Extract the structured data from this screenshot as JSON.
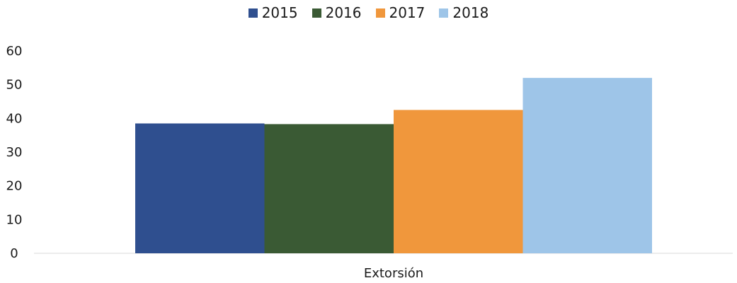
{
  "chart_data": {
    "type": "bar",
    "categories": [
      "Extorsión"
    ],
    "series": [
      {
        "name": "2015",
        "values": [
          38.5
        ],
        "color": "#2f4f8f"
      },
      {
        "name": "2016",
        "values": [
          38.3
        ],
        "color": "#3a5a34"
      },
      {
        "name": "2017",
        "values": [
          42.5
        ],
        "color": "#f0973c"
      },
      {
        "name": "2018",
        "values": [
          52.0
        ],
        "color": "#9ec5e8"
      }
    ],
    "ylim": [
      0,
      60
    ],
    "yticks": [
      "0",
      "10",
      "20",
      "30",
      "40",
      "50",
      "60"
    ],
    "legend_position": "top-center",
    "grid": false
  }
}
